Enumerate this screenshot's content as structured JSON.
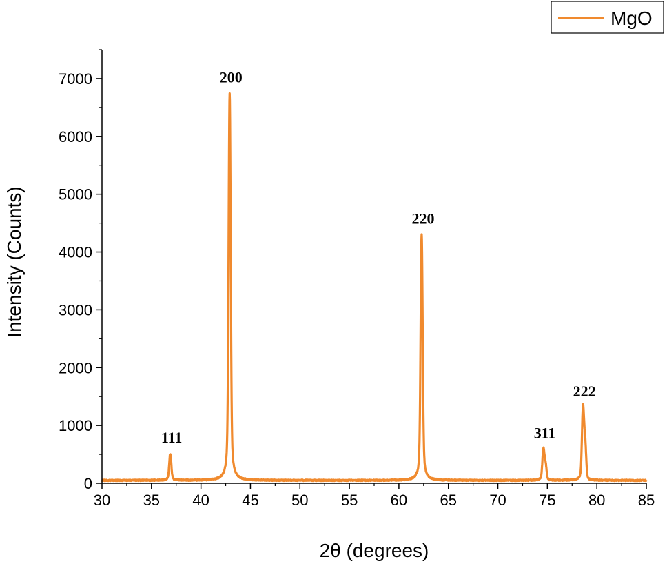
{
  "chart_data": {
    "type": "line",
    "title": "",
    "xlabel": "2θ (degrees)",
    "ylabel": "Intensity (Counts)",
    "xlim": [
      30,
      85
    ],
    "ylim": [
      0,
      7500
    ],
    "x_ticks": [
      30,
      35,
      40,
      45,
      50,
      55,
      60,
      65,
      70,
      75,
      80,
      85
    ],
    "y_ticks": [
      0,
      1000,
      2000,
      3000,
      4000,
      5000,
      6000,
      7000
    ],
    "x_tick_labels": [
      "30",
      "35",
      "40",
      "45",
      "50",
      "55",
      "60",
      "65",
      "70",
      "75",
      "80",
      "85"
    ],
    "y_tick_labels": [
      "0",
      "1000",
      "2000",
      "3000",
      "4000",
      "5000",
      "6000",
      "7000"
    ],
    "grid": false,
    "legend": {
      "position": "top-right",
      "entries": [
        "MgO"
      ]
    },
    "series": [
      {
        "name": "MgO",
        "color": "#f08a2e",
        "baseline": 50,
        "peaks": [
          {
            "x": 36.9,
            "y": 510,
            "label": "111"
          },
          {
            "x": 42.9,
            "y": 6740,
            "label": "200"
          },
          {
            "x": 62.3,
            "y": 4300,
            "label": "220"
          },
          {
            "x": 74.6,
            "y": 590,
            "label": "311"
          },
          {
            "x": 78.6,
            "y": 1310,
            "label": "222"
          }
        ]
      }
    ]
  }
}
